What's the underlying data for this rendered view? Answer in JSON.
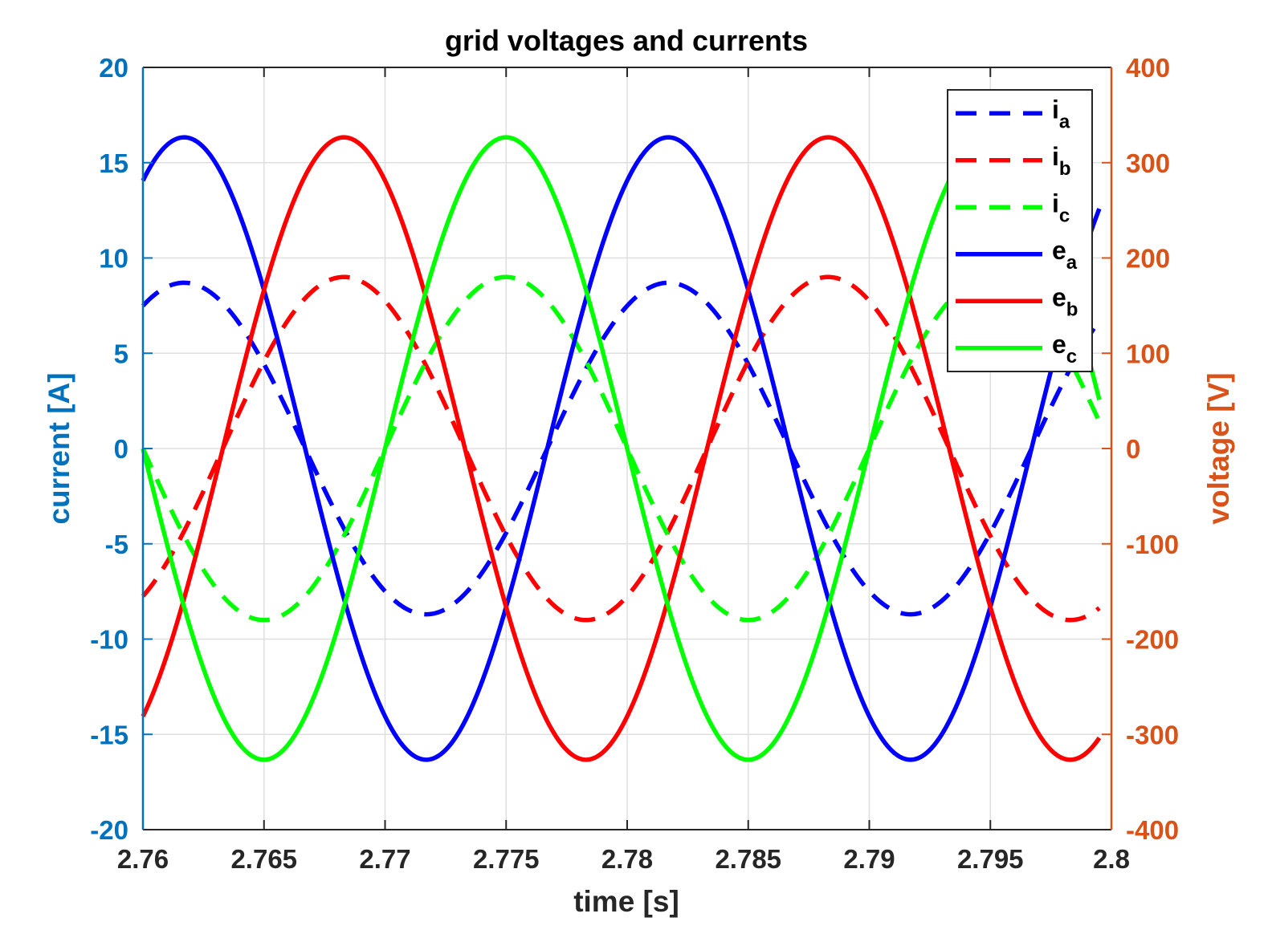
{
  "chart_data": {
    "type": "line",
    "title": "grid voltages and currents",
    "xlabel": "time [s]",
    "ylabel_left": "current [A]",
    "ylabel_right": "voltage [V]",
    "xlim": [
      2.76,
      2.8
    ],
    "ylim_left": [
      -20,
      20
    ],
    "ylim_right": [
      -400,
      400
    ],
    "x_ticks": [
      "2.76",
      "2.765",
      "2.77",
      "2.775",
      "2.78",
      "2.785",
      "2.79",
      "2.795",
      "2.8"
    ],
    "y_left_ticks": [
      "-20",
      "-15",
      "-10",
      "-5",
      "0",
      "5",
      "10",
      "15",
      "20"
    ],
    "y_right_ticks": [
      "-400",
      "-300",
      "-200",
      "-100",
      "0",
      "100",
      "200",
      "300",
      "400"
    ],
    "grid": true,
    "legend_position": "top-right",
    "x_end": 2.7995,
    "colors": {
      "left_axis": "#0072BD",
      "right_axis": "#D95319",
      "grid": "#dfdfdf",
      "box": "#262626"
    },
    "series": [
      {
        "legend_base": "i",
        "legend_sub": "a",
        "axis": "left",
        "style": "dashed",
        "color": "#0000ff",
        "amplitude": 8.7,
        "frequency_hz": 50,
        "peak_time": 2.7617
      },
      {
        "legend_base": "i",
        "legend_sub": "b",
        "axis": "left",
        "style": "dashed",
        "color": "#ff0000",
        "amplitude": 9.0,
        "frequency_hz": 50,
        "peak_time": 2.7683
      },
      {
        "legend_base": "i",
        "legend_sub": "c",
        "axis": "left",
        "style": "dashed",
        "color": "#00ff00",
        "amplitude": 9.0,
        "frequency_hz": 50,
        "peak_time": 2.775
      },
      {
        "legend_base": "e",
        "legend_sub": "a",
        "axis": "right",
        "style": "solid",
        "color": "#0000ff",
        "amplitude": 326.6,
        "frequency_hz": 50,
        "peak_time": 2.7617
      },
      {
        "legend_base": "e",
        "legend_sub": "b",
        "axis": "right",
        "style": "solid",
        "color": "#ff0000",
        "amplitude": 326.6,
        "frequency_hz": 50,
        "peak_time": 2.7683
      },
      {
        "legend_base": "e",
        "legend_sub": "c",
        "axis": "right",
        "style": "solid",
        "color": "#00ff00",
        "amplitude": 326.6,
        "frequency_hz": 50,
        "peak_time": 2.775
      }
    ]
  }
}
